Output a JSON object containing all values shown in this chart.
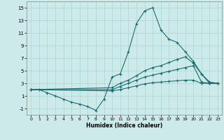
{
  "xlabel": "Humidex (Indice chaleur)",
  "background_color": "#cceaea",
  "grid_color": "#aad4d4",
  "line_color": "#1a6e6e",
  "xlim": [
    -0.5,
    23.5
  ],
  "ylim": [
    -2,
    16
  ],
  "xticks": [
    0,
    1,
    2,
    3,
    4,
    5,
    6,
    7,
    8,
    9,
    10,
    11,
    12,
    13,
    14,
    15,
    16,
    17,
    18,
    19,
    20,
    21,
    22,
    23
  ],
  "yticks": [
    -1,
    1,
    3,
    5,
    7,
    9,
    11,
    13,
    15
  ],
  "line1_x": [
    0,
    1,
    2,
    3,
    4,
    5,
    6,
    7,
    8,
    9,
    10,
    11,
    12,
    13,
    14,
    15,
    16,
    17,
    18,
    19,
    20,
    21,
    22,
    23
  ],
  "line1_y": [
    2.0,
    2.0,
    1.5,
    1.0,
    0.5,
    0.0,
    -0.3,
    -0.7,
    -1.3,
    0.5,
    4.0,
    4.5,
    8.0,
    12.5,
    14.5,
    15.0,
    11.5,
    10.0,
    9.5,
    8.0,
    6.5,
    4.5,
    3.0,
    3.0
  ],
  "line2_x": [
    0,
    10,
    11,
    12,
    13,
    14,
    15,
    16,
    17,
    18,
    19,
    20,
    21,
    22,
    23
  ],
  "line2_y": [
    2.0,
    2.3,
    3.0,
    3.5,
    4.2,
    5.0,
    5.5,
    5.8,
    6.3,
    6.8,
    7.2,
    6.2,
    4.5,
    3.2,
    3.0
  ],
  "line3_x": [
    0,
    10,
    11,
    12,
    13,
    14,
    15,
    16,
    17,
    18,
    19,
    20,
    21,
    22,
    23
  ],
  "line3_y": [
    2.0,
    2.0,
    2.5,
    3.0,
    3.5,
    4.0,
    4.3,
    4.6,
    4.9,
    5.2,
    5.5,
    5.8,
    3.2,
    3.0,
    3.0
  ],
  "line4_x": [
    0,
    10,
    11,
    12,
    13,
    14,
    15,
    16,
    17,
    18,
    19,
    20,
    21,
    22,
    23
  ],
  "line4_y": [
    2.0,
    1.8,
    2.0,
    2.3,
    2.6,
    2.9,
    3.1,
    3.2,
    3.3,
    3.4,
    3.5,
    3.5,
    3.0,
    3.0,
    3.0
  ]
}
